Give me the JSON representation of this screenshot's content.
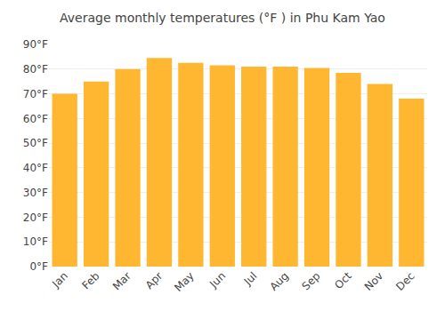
{
  "chart_data": {
    "type": "bar",
    "title": "Average monthly temperatures (°F ) in Phu Kam Yao",
    "categories": [
      "Jan",
      "Feb",
      "Mar",
      "Apr",
      "May",
      "Jun",
      "Jul",
      "Aug",
      "Sep",
      "Oct",
      "Nov",
      "Dec"
    ],
    "values": [
      70.0,
      75.0,
      80.0,
      84.5,
      82.5,
      81.5,
      81.0,
      81.0,
      80.5,
      78.5,
      74.0,
      68.0
    ],
    "color": "#FFB732",
    "ylim": [
      0,
      90
    ],
    "yticks": [
      {
        "value": 0,
        "label": "0°F"
      },
      {
        "value": 10,
        "label": "10°F"
      },
      {
        "value": 20,
        "label": "20°F"
      },
      {
        "value": 30,
        "label": "30°F"
      },
      {
        "value": 40,
        "label": "40°F"
      },
      {
        "value": 50,
        "label": "50°F"
      },
      {
        "value": 60,
        "label": "60°F"
      },
      {
        "value": 70,
        "label": "70°F"
      },
      {
        "value": 80,
        "label": "80°F"
      },
      {
        "value": 90,
        "label": "90°F"
      }
    ],
    "grid": true
  }
}
